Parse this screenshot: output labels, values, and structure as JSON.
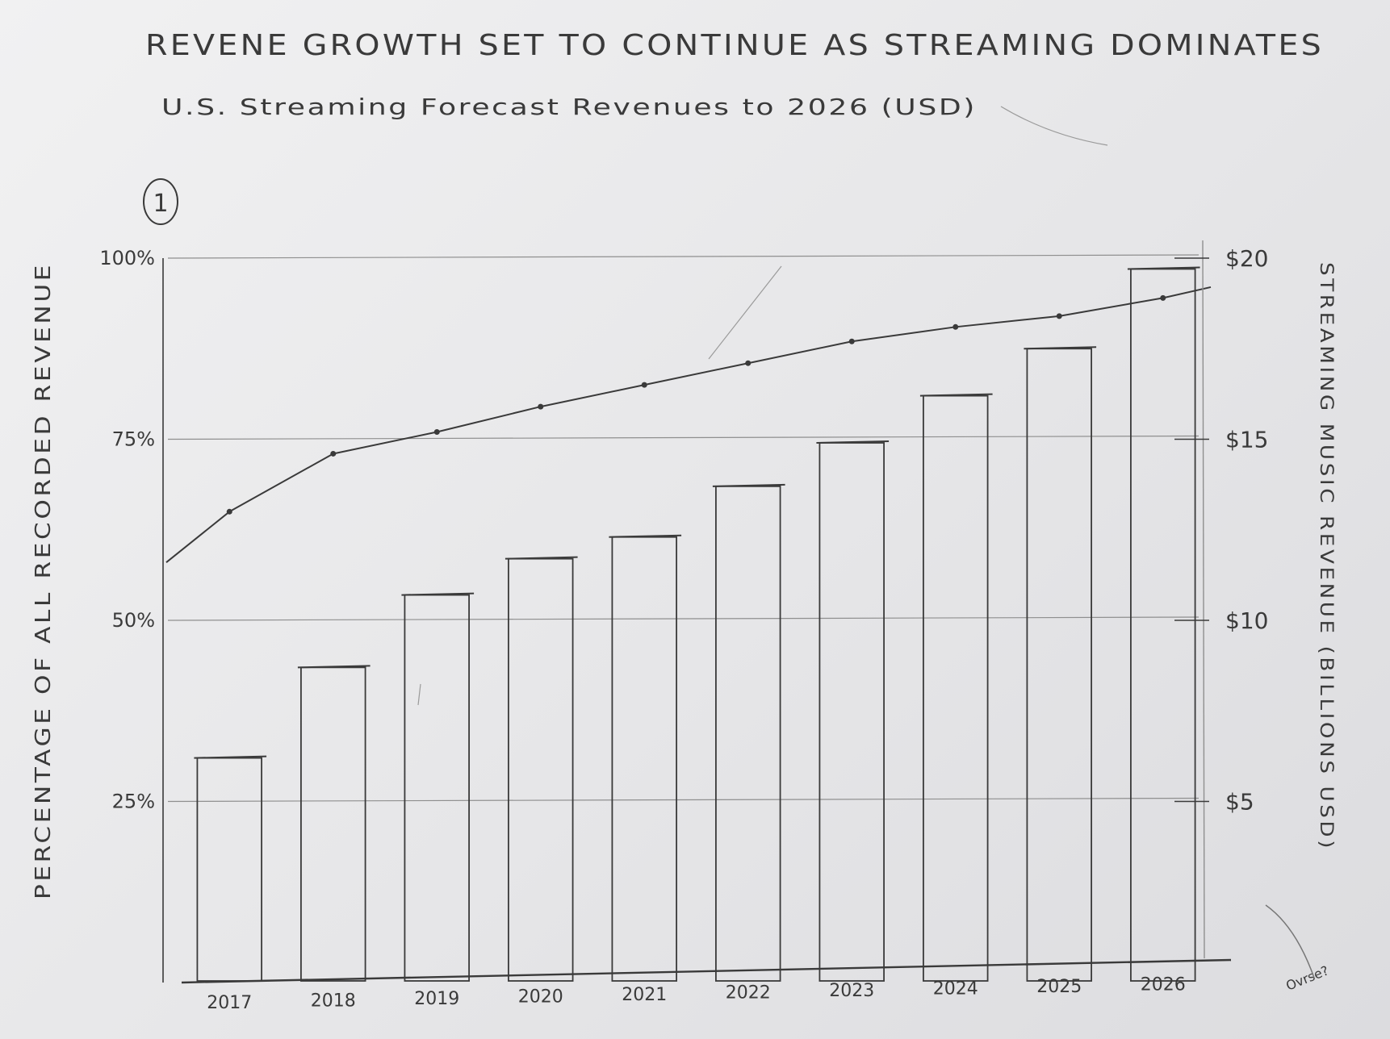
{
  "page": {
    "title": "REVENE GROWTH SET TO CONTINUE AS STREAMING DOMINATES",
    "subtitle": "U.S. Streaming Forecast Revenues to 2026 (USD)",
    "figure_number": "1",
    "margin_note": "Ovrse?"
  },
  "chart_data": {
    "type": "bar",
    "categories": [
      "2017",
      "2018",
      "2019",
      "2020",
      "2021",
      "2022",
      "2023",
      "2024",
      "2025",
      "2026"
    ],
    "series": [
      {
        "axis": "right",
        "mark": "bar",
        "values": [
          6.2,
          8.7,
          10.7,
          11.7,
          12.3,
          13.7,
          14.9,
          16.2,
          17.5,
          19.7
        ]
      },
      {
        "axis": "left",
        "mark": "line",
        "values": [
          65,
          73,
          76,
          79.5,
          82.5,
          85.5,
          88.5,
          90.5,
          92,
          94.5
        ]
      }
    ],
    "y_left": {
      "label": "PERCENTAGE OF ALL RECORDED REVENUE",
      "ticks": [
        "25%",
        "50%",
        "75%",
        "100%"
      ],
      "tick_values": [
        25,
        50,
        75,
        100
      ],
      "range": [
        0,
        100
      ]
    },
    "y_right": {
      "label": "STREAMING MUSIC REVENUE (BILLIONS USD)",
      "ticks": [
        "$5",
        "$10",
        "$15",
        "$20"
      ],
      "tick_values": [
        5,
        10,
        15,
        20
      ],
      "range": [
        0,
        20
      ]
    },
    "grid": true,
    "legend": "none",
    "style": "hand-drawn pencil sketch",
    "colors": {
      "ink": "#3a3a3a",
      "pencil": "#8f8f8f",
      "paper": "#eeeeef"
    }
  }
}
